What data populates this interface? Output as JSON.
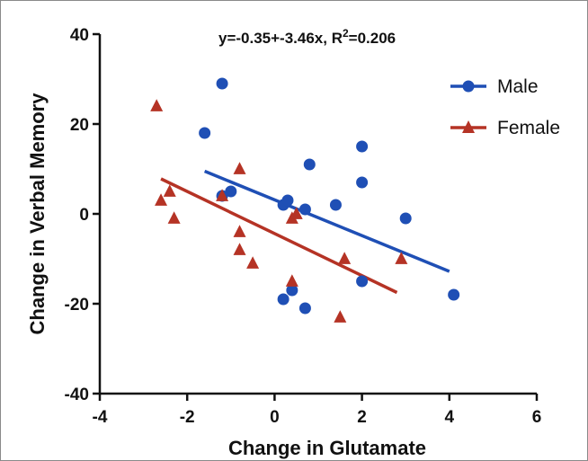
{
  "chart_data": {
    "type": "scatter",
    "title": "",
    "xlabel": "Change in Glutamate",
    "ylabel": "Change in Verbal Memory",
    "xlim": [
      -4,
      6
    ],
    "ylim": [
      -40,
      40
    ],
    "x_ticks": [
      -4,
      -2,
      0,
      2,
      4,
      6
    ],
    "y_ticks": [
      -40,
      -20,
      0,
      20,
      40
    ],
    "x_tick_labels": [
      "-4",
      "-2",
      "0",
      "2",
      "4",
      "6"
    ],
    "y_tick_labels": [
      "-40",
      "-20",
      "0",
      "20",
      "40"
    ],
    "grid": false,
    "legend_position": "top-right",
    "annotation": {
      "prefix": "y=-0.35+-3.46x, R",
      "superscript": "2",
      "suffix": "=0.206"
    },
    "series": [
      {
        "name": "Male",
        "marker": "circle",
        "color": "#1f4fb5",
        "points": [
          {
            "x": -1.2,
            "y": 29
          },
          {
            "x": -1.6,
            "y": 18
          },
          {
            "x": -1.2,
            "y": 4
          },
          {
            "x": -1.0,
            "y": 5
          },
          {
            "x": 0.2,
            "y": 2
          },
          {
            "x": 0.3,
            "y": 3
          },
          {
            "x": 0.7,
            "y": 1
          },
          {
            "x": 0.8,
            "y": 11
          },
          {
            "x": 1.4,
            "y": 2
          },
          {
            "x": 2.0,
            "y": 15
          },
          {
            "x": 2.0,
            "y": 7
          },
          {
            "x": 3.0,
            "y": -1
          },
          {
            "x": 2.0,
            "y": -15
          },
          {
            "x": 4.1,
            "y": -18
          },
          {
            "x": 0.4,
            "y": -17
          },
          {
            "x": 0.2,
            "y": -19
          },
          {
            "x": 0.7,
            "y": -21
          }
        ],
        "fit_line": {
          "x": [
            -1.6,
            4.0
          ],
          "y": [
            9.5,
            -12.8
          ]
        }
      },
      {
        "name": "Female",
        "marker": "triangle",
        "color": "#b53325",
        "points": [
          {
            "x": -2.7,
            "y": 24
          },
          {
            "x": -2.6,
            "y": 3
          },
          {
            "x": -2.4,
            "y": 5
          },
          {
            "x": -2.3,
            "y": -1
          },
          {
            "x": -1.2,
            "y": 4
          },
          {
            "x": -0.8,
            "y": 10
          },
          {
            "x": -0.8,
            "y": -4
          },
          {
            "x": -0.8,
            "y": -8
          },
          {
            "x": -0.5,
            "y": -11
          },
          {
            "x": 0.4,
            "y": -1
          },
          {
            "x": 0.5,
            "y": 0
          },
          {
            "x": 0.4,
            "y": -15
          },
          {
            "x": 1.5,
            "y": -23
          },
          {
            "x": 1.6,
            "y": -10
          },
          {
            "x": 2.9,
            "y": -10
          }
        ],
        "fit_line": {
          "x": [
            -2.6,
            2.8
          ],
          "y": [
            7.8,
            -17.5
          ]
        }
      }
    ]
  }
}
